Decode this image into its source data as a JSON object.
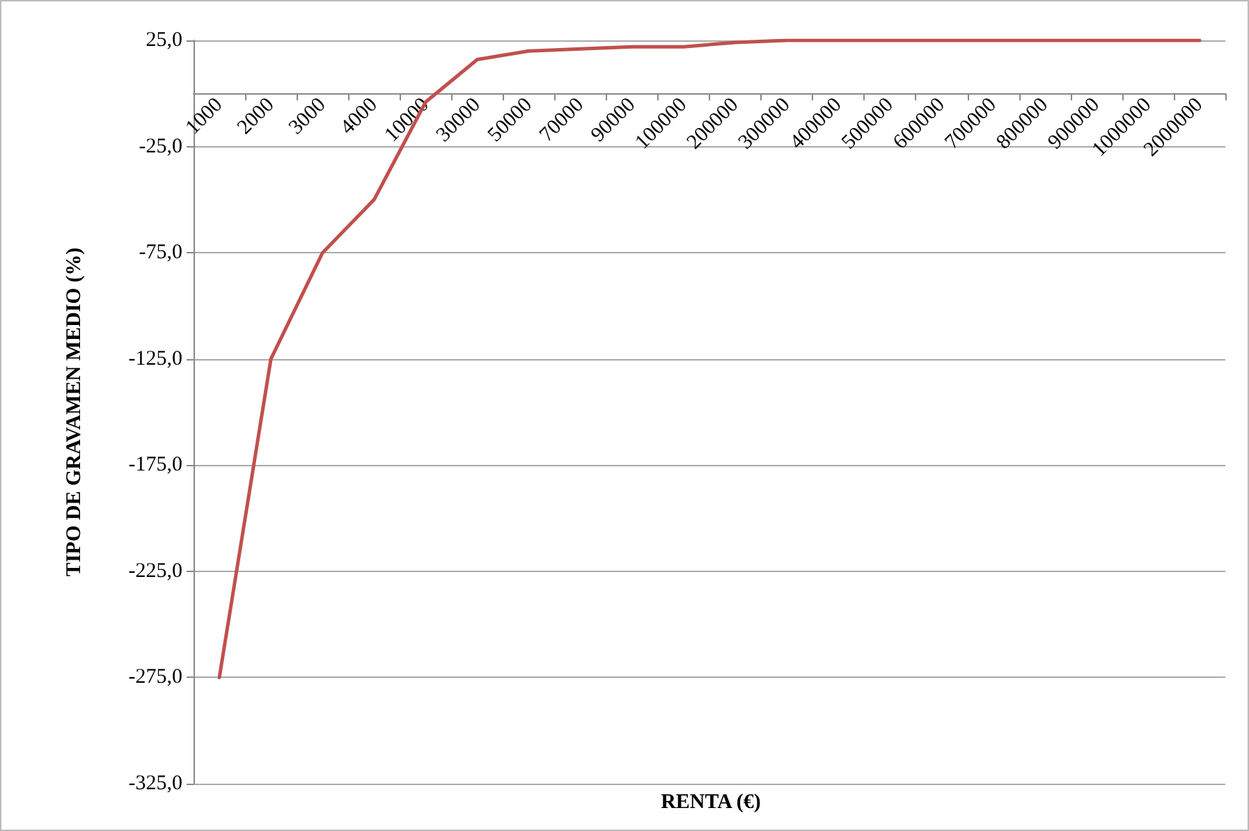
{
  "chart_data": {
    "type": "line",
    "xlabel": "RENTA (€)",
    "ylabel": "TIPO DE GRAVAMEN MEDIO (%)",
    "categories": [
      "1000",
      "2000",
      "3000",
      "4000",
      "10000",
      "30000",
      "50000",
      "70000",
      "90000",
      "100000",
      "200000",
      "300000",
      "400000",
      "500000",
      "600000",
      "700000",
      "800000",
      "900000",
      "1000000",
      "2000000"
    ],
    "series": [
      {
        "color": "#c0504d",
        "values": [
          -275,
          -125,
          -75,
          -50,
          -4,
          16,
          20,
          21,
          22,
          22,
          24,
          25,
          25,
          25,
          25,
          25,
          25,
          25,
          25,
          25
        ]
      }
    ],
    "ylim": [
      -325,
      25
    ],
    "yticks": [
      {
        "value": -325,
        "label": "-325,0"
      },
      {
        "value": -275,
        "label": "-275,0"
      },
      {
        "value": -225,
        "label": "-225,0"
      },
      {
        "value": -175,
        "label": "-175,0"
      },
      {
        "value": -125,
        "label": "-125,0"
      },
      {
        "value": -75,
        "label": "-75,0"
      },
      {
        "value": -25,
        "label": "-25,0"
      },
      {
        "value": 25,
        "label": "25,0"
      }
    ],
    "grid": "y",
    "marker": "none",
    "line_style": "solid"
  }
}
